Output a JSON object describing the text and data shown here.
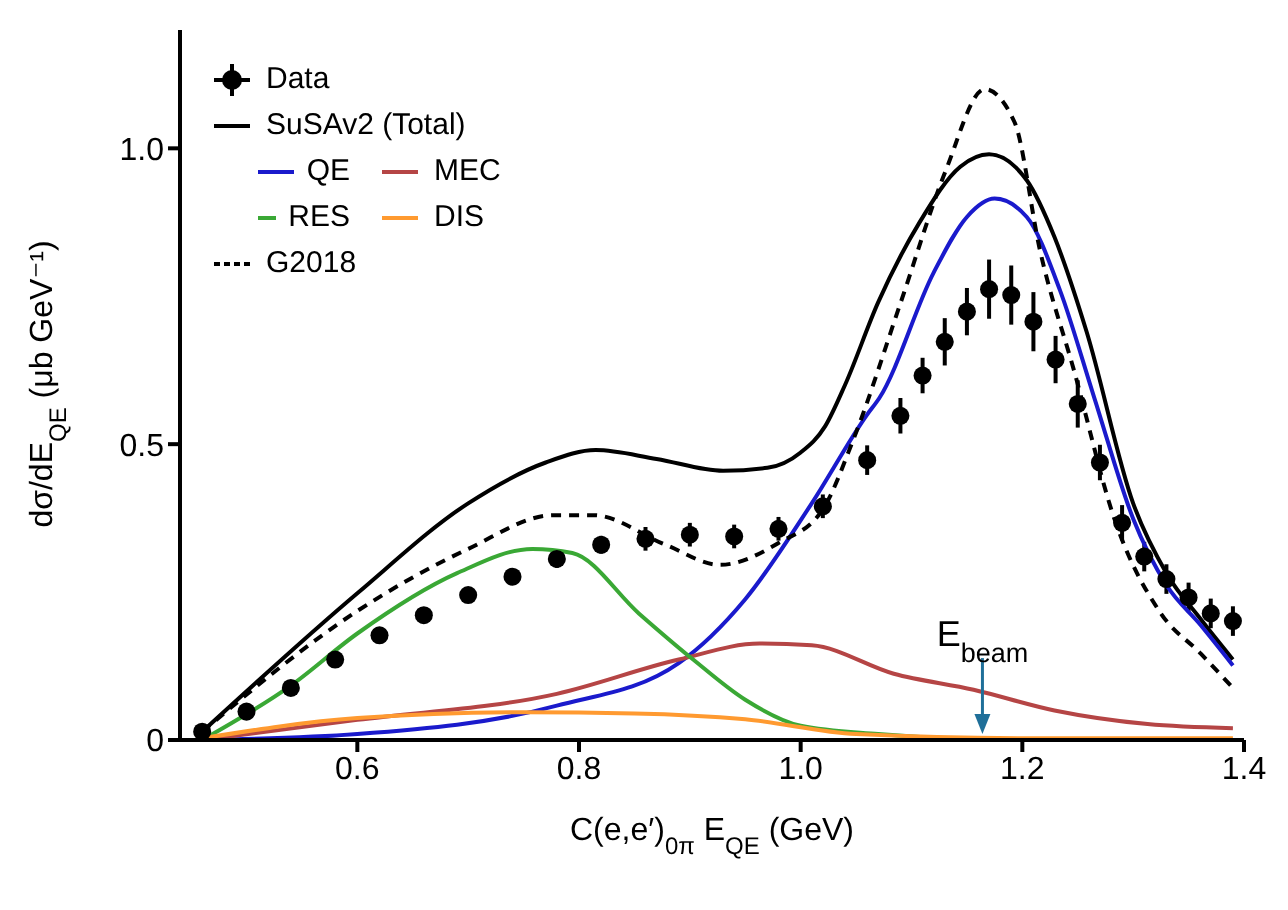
{
  "chart_data": {
    "type": "line",
    "xlabel": "C(e,e′)$_{0π}$ E$_{QE}$ (GeV)",
    "ylabel": "dσ/dE$_{QE}$ (μb GeV⁻¹)",
    "xlim": [
      0.44,
      1.4
    ],
    "xticks": [
      0.6,
      0.8,
      {
        "value": 1,
        "label": "1.0"
      },
      1.2,
      1.4
    ],
    "ylim": [
      0,
      1.2
    ],
    "yticks": [
      0,
      0.5,
      {
        "value": 1,
        "label": "1.0"
      }
    ],
    "legend": "top left",
    "annotations": [
      {
        "text": "E$_{beam}$",
        "x": 1.164,
        "y": 0.01
      }
    ],
    "series": [
      {
        "name": "Data",
        "type": "scatter",
        "color": "#000000",
        "marker": "circle",
        "x": [
          0.46,
          0.5,
          0.54,
          0.58,
          0.62,
          0.66,
          0.7,
          0.74,
          0.78,
          0.82,
          0.86,
          0.9,
          0.94,
          0.98,
          1.02,
          1.06,
          1.09,
          1.11,
          1.13,
          1.15,
          1.17,
          1.19,
          1.21,
          1.23,
          1.25,
          1.27,
          1.29,
          1.31,
          1.33,
          1.35,
          1.37,
          1.39
        ],
        "values": [
          0.014,
          0.048,
          0.088,
          0.136,
          0.177,
          0.211,
          0.245,
          0.276,
          0.306,
          0.33,
          0.34,
          0.347,
          0.344,
          0.357,
          0.395,
          0.473,
          0.548,
          0.616,
          0.673,
          0.724,
          0.762,
          0.752,
          0.707,
          0.643,
          0.568,
          0.469,
          0.367,
          0.31,
          0.272,
          0.241,
          0.214,
          0.201
        ],
        "errors": [
          0.01,
          0.01,
          0.01,
          0.01,
          0.01,
          0.01,
          0.01,
          0.01,
          0.015,
          0.015,
          0.02,
          0.02,
          0.02,
          0.02,
          0.02,
          0.025,
          0.03,
          0.03,
          0.04,
          0.04,
          0.05,
          0.05,
          0.05,
          0.04,
          0.04,
          0.03,
          0.03,
          0.025,
          0.025,
          0.025,
          0.025,
          0.025
        ]
      },
      {
        "name": "SuSAv2 (Total)",
        "type": "line",
        "color": "#000000",
        "line_style": "solid",
        "x": [
          0.46,
          0.6,
          0.7,
          0.77,
          0.815,
          0.87,
          0.93,
          0.97,
          1.0,
          1.022,
          1.04,
          1.07,
          1.107,
          1.144,
          1.17,
          1.204,
          1.229,
          1.258,
          1.3,
          1.33,
          1.361,
          1.39
        ],
        "values": [
          0.014,
          0.248,
          0.4,
          0.469,
          0.49,
          0.475,
          0.455,
          0.46,
          0.486,
          0.53,
          0.6,
          0.74,
          0.874,
          0.969,
          0.99,
          0.946,
          0.85,
          0.69,
          0.4,
          0.282,
          0.204,
          0.136
        ]
      },
      {
        "name": "QE",
        "type": "line",
        "color": "#1a1acc",
        "line_style": "solid",
        "x": [
          0.46,
          0.6,
          0.78,
          0.89,
          0.95,
          1.01,
          1.06,
          1.071,
          1.12,
          1.15,
          1.175,
          1.204,
          1.234,
          1.265,
          1.3,
          1.33,
          1.361,
          1.39
        ],
        "values": [
          0.0,
          0.01,
          0.058,
          0.13,
          0.238,
          0.4,
          0.55,
          0.578,
          0.79,
          0.884,
          0.915,
          0.884,
          0.76,
          0.578,
          0.374,
          0.262,
          0.194,
          0.126
        ]
      },
      {
        "name": "MEC",
        "type": "line",
        "color": "#b54545",
        "line_style": "solid",
        "x": [
          0.46,
          0.6,
          0.78,
          0.89,
          0.963,
          1.01,
          1.084,
          1.156,
          1.229,
          1.313,
          1.39
        ],
        "values": [
          0.0,
          0.034,
          0.078,
          0.136,
          0.163,
          0.16,
          0.112,
          0.085,
          0.05,
          0.027,
          0.02
        ]
      },
      {
        "name": "RES",
        "type": "line",
        "color": "#3aa835",
        "line_style": "solid",
        "x": [
          0.46,
          0.54,
          0.6,
          0.69,
          0.758,
          0.794,
          0.854,
          0.903,
          0.95,
          1.0,
          1.07,
          1.2,
          1.39
        ],
        "values": [
          0.0,
          0.092,
          0.18,
          0.282,
          0.323,
          0.316,
          0.214,
          0.136,
          0.068,
          0.024,
          0.01,
          0.0,
          0.0
        ]
      },
      {
        "name": "DIS",
        "type": "line",
        "color": "#ff9a30",
        "line_style": "solid",
        "x": [
          0.46,
          0.6,
          0.75,
          0.85,
          0.95,
          1.05,
          1.2,
          1.39
        ],
        "values": [
          0.003,
          0.037,
          0.047,
          0.045,
          0.035,
          0.01,
          0.003,
          0.003
        ]
      },
      {
        "name": "G2018",
        "type": "line",
        "color": "#000000",
        "line_style": "dashed",
        "x": [
          0.46,
          0.6,
          0.7,
          0.777,
          0.813,
          0.878,
          0.927,
          0.98,
          1.02,
          1.048,
          1.09,
          1.131,
          1.166,
          1.193,
          1.216,
          1.247,
          1.283,
          1.325,
          1.361,
          1.388
        ],
        "values": [
          0.014,
          0.218,
          0.323,
          0.38,
          0.38,
          0.33,
          0.296,
          0.333,
          0.39,
          0.51,
          0.738,
          0.963,
          1.1,
          1.044,
          0.827,
          0.622,
          0.374,
          0.214,
          0.146,
          0.092
        ]
      }
    ]
  }
}
